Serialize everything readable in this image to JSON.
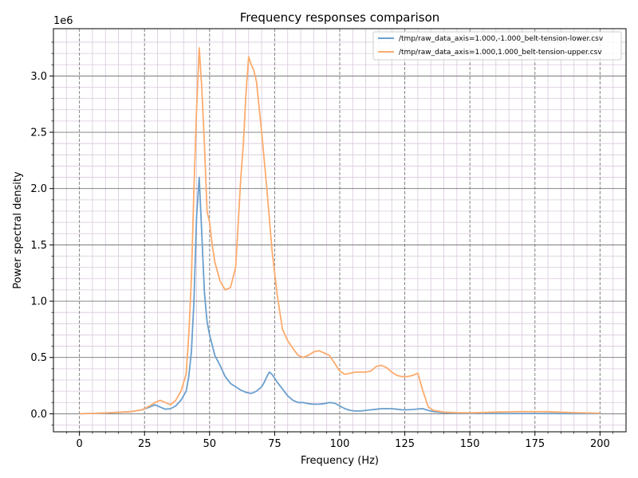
{
  "chart_data": {
    "type": "line",
    "title": "Frequency responses comparison",
    "xlabel": "Frequency (Hz)",
    "ylabel": "Power spectral density",
    "y_offset_label": "1e6",
    "xlim": [
      -10,
      210
    ],
    "ylim": [
      -0.16,
      3.42
    ],
    "y_unit_multiplier": 1000000,
    "x_ticks": [
      0,
      25,
      50,
      75,
      100,
      125,
      150,
      175,
      200
    ],
    "x_tick_labels": [
      "0",
      "25",
      "50",
      "75",
      "100",
      "125",
      "150",
      "175",
      "200"
    ],
    "y_ticks": [
      0.0,
      0.5,
      1.0,
      1.5,
      2.0,
      2.5,
      3.0
    ],
    "y_tick_labels": [
      "0.0",
      "0.5",
      "1.0",
      "1.5",
      "2.0",
      "2.5",
      "3.0"
    ],
    "grid": true,
    "legend_position": "top-right",
    "series": [
      {
        "name": "/tmp/raw_data_axis=1.000,-1.000_belt-tension-lower.csv",
        "color": "#6a9fcd",
        "x": [
          0,
          5,
          10,
          15,
          20,
          24,
          27,
          29,
          31,
          33,
          35,
          37,
          39,
          41,
          42,
          43,
          44,
          45,
          46,
          47,
          48,
          49,
          50,
          52,
          54,
          56,
          58,
          60,
          62,
          64,
          66,
          68,
          70,
          71,
          72,
          73,
          74,
          76,
          78,
          80,
          82,
          84,
          86,
          88,
          90,
          92,
          94,
          96,
          98,
          100,
          102,
          104,
          106,
          108,
          110,
          112,
          114,
          116,
          118,
          120,
          122,
          124,
          126,
          128,
          130,
          132,
          134,
          136,
          140,
          145,
          150,
          160,
          170,
          180,
          190,
          200
        ],
        "y": [
          0.0,
          0.003,
          0.007,
          0.013,
          0.02,
          0.035,
          0.06,
          0.08,
          0.06,
          0.04,
          0.045,
          0.07,
          0.12,
          0.2,
          0.33,
          0.55,
          1.0,
          1.75,
          2.1,
          1.6,
          1.08,
          0.82,
          0.7,
          0.52,
          0.43,
          0.33,
          0.27,
          0.24,
          0.21,
          0.19,
          0.18,
          0.2,
          0.24,
          0.28,
          0.33,
          0.37,
          0.35,
          0.28,
          0.22,
          0.16,
          0.12,
          0.1,
          0.1,
          0.09,
          0.085,
          0.085,
          0.09,
          0.1,
          0.095,
          0.07,
          0.045,
          0.03,
          0.025,
          0.025,
          0.03,
          0.035,
          0.04,
          0.045,
          0.045,
          0.045,
          0.04,
          0.035,
          0.035,
          0.038,
          0.042,
          0.045,
          0.03,
          0.02,
          0.01,
          0.005,
          0.003,
          0.002,
          0.002,
          0.002,
          0.001,
          0.001
        ]
      },
      {
        "name": "/tmp/raw_data_axis=1.000,1.000_belt-tension-upper.csv",
        "color": "#fdab6d",
        "x": [
          0,
          5,
          10,
          15,
          20,
          24,
          27,
          29,
          31,
          33,
          35,
          37,
          39,
          41,
          42,
          43,
          44,
          45,
          46,
          47,
          48,
          49,
          50,
          51,
          52,
          54,
          56,
          58,
          60,
          62,
          63,
          64,
          65,
          66,
          67,
          68,
          70,
          72,
          74,
          76,
          78,
          80,
          82,
          84,
          86,
          88,
          90,
          92,
          94,
          96,
          98,
          100,
          102,
          104,
          106,
          108,
          110,
          112,
          114,
          116,
          118,
          120,
          122,
          124,
          126,
          128,
          130,
          132,
          134,
          136,
          140,
          145,
          150,
          160,
          170,
          180,
          190,
          200
        ],
        "y": [
          0.0,
          0.003,
          0.007,
          0.013,
          0.02,
          0.035,
          0.07,
          0.1,
          0.12,
          0.1,
          0.08,
          0.12,
          0.2,
          0.35,
          0.7,
          1.2,
          2.0,
          2.7,
          3.25,
          2.9,
          2.4,
          1.8,
          1.7,
          1.5,
          1.35,
          1.18,
          1.1,
          1.12,
          1.3,
          2.1,
          2.4,
          2.85,
          3.17,
          3.1,
          3.05,
          2.95,
          2.5,
          2.0,
          1.45,
          1.05,
          0.75,
          0.65,
          0.58,
          0.52,
          0.5,
          0.52,
          0.55,
          0.56,
          0.54,
          0.52,
          0.45,
          0.38,
          0.35,
          0.36,
          0.37,
          0.37,
          0.37,
          0.38,
          0.42,
          0.43,
          0.41,
          0.37,
          0.34,
          0.33,
          0.33,
          0.34,
          0.36,
          0.2,
          0.06,
          0.03,
          0.015,
          0.01,
          0.008,
          0.015,
          0.02,
          0.018,
          0.01,
          0.005
        ]
      }
    ]
  }
}
